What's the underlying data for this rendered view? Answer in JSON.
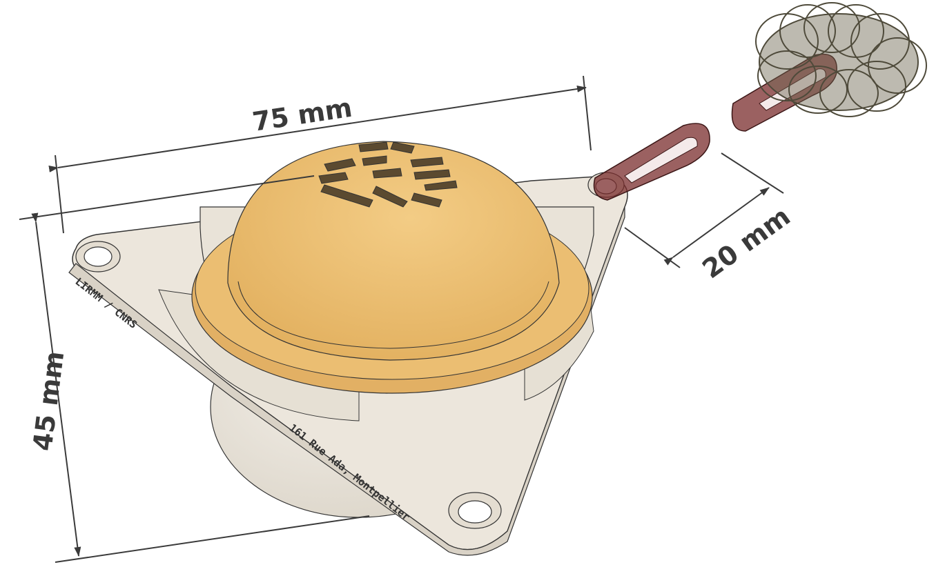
{
  "dimensions": {
    "width_label": "75 mm",
    "height_label": "45 mm",
    "clip_label": "20 mm"
  },
  "engravings": {
    "left_edge": "LIRMM / CNRS",
    "front_edge": "161 Rue Ada, Montpellier"
  },
  "colors": {
    "dome": "#ebbe72",
    "dome_highlight": "#f3cc85",
    "base": "#ece6dc",
    "base_shadow": "#d9d2c6",
    "clip": "#7a2c2c",
    "coil": "#6d6650",
    "dimension_line": "#3a3a3a"
  }
}
